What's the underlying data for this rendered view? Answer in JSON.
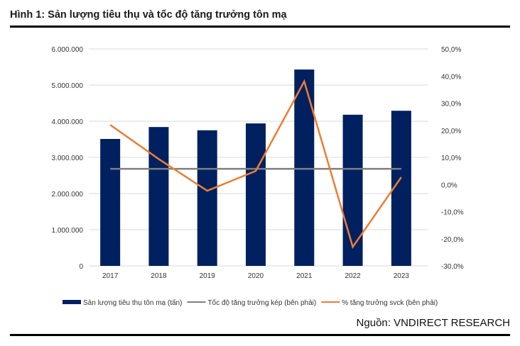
{
  "header": {
    "title": "Hình 1: Sản lượng tiêu thụ và tốc độ tăng trưởng tôn mạ"
  },
  "footer": {
    "source": "Nguồn:  VNDIRECT  RESEARCH"
  },
  "colors": {
    "bar": "#002060",
    "cagr": "#7f7f7f",
    "yoy": "#ed7d31",
    "grid": "#d9d9d9"
  },
  "chart_data": {
    "type": "bar+line",
    "title": "Hình 1: Sản lượng tiêu thụ và tốc độ tăng trưởng tôn mạ",
    "categories": [
      "2017",
      "2018",
      "2019",
      "2020",
      "2021",
      "2022",
      "2023"
    ],
    "series": [
      {
        "name": "Sản lượng tiêu thụ tôn mạ (tấn)",
        "type": "bar",
        "axis": "left",
        "values": [
          3510000,
          3840000,
          3750000,
          3940000,
          5430000,
          4180000,
          4290000
        ]
      },
      {
        "name": "Tốc độ tăng trưởng kép (bên phải)",
        "type": "line",
        "axis": "right",
        "values": [
          5.8,
          5.8,
          5.8,
          5.8,
          5.8,
          5.8,
          5.8
        ]
      },
      {
        "name": "% tăng trưởng svck (bên phải)",
        "type": "line",
        "axis": "right",
        "values": [
          22.0,
          9.4,
          -2.3,
          5.0,
          38.0,
          -23.0,
          2.7
        ]
      }
    ],
    "left_axis": {
      "range": [
        0,
        6000000
      ],
      "ticks": [
        0,
        1000000,
        2000000,
        3000000,
        4000000,
        5000000,
        6000000
      ],
      "tick_labels": [
        "0",
        "1.000.000",
        "2.000.000",
        "3.000.000",
        "4.000.000",
        "5.000.000",
        "6.000.000"
      ]
    },
    "right_axis": {
      "range": [
        -30,
        50
      ],
      "ticks": [
        -30,
        -20,
        -10,
        0,
        10,
        20,
        30,
        40,
        50
      ],
      "tick_labels": [
        "-30,0%",
        "-20,0%",
        "-10,0%",
        "0,0%",
        "10,0%",
        "20,0%",
        "30,0%",
        "40,0%",
        "50,0%"
      ]
    },
    "grid": true,
    "legend": "bottom"
  }
}
